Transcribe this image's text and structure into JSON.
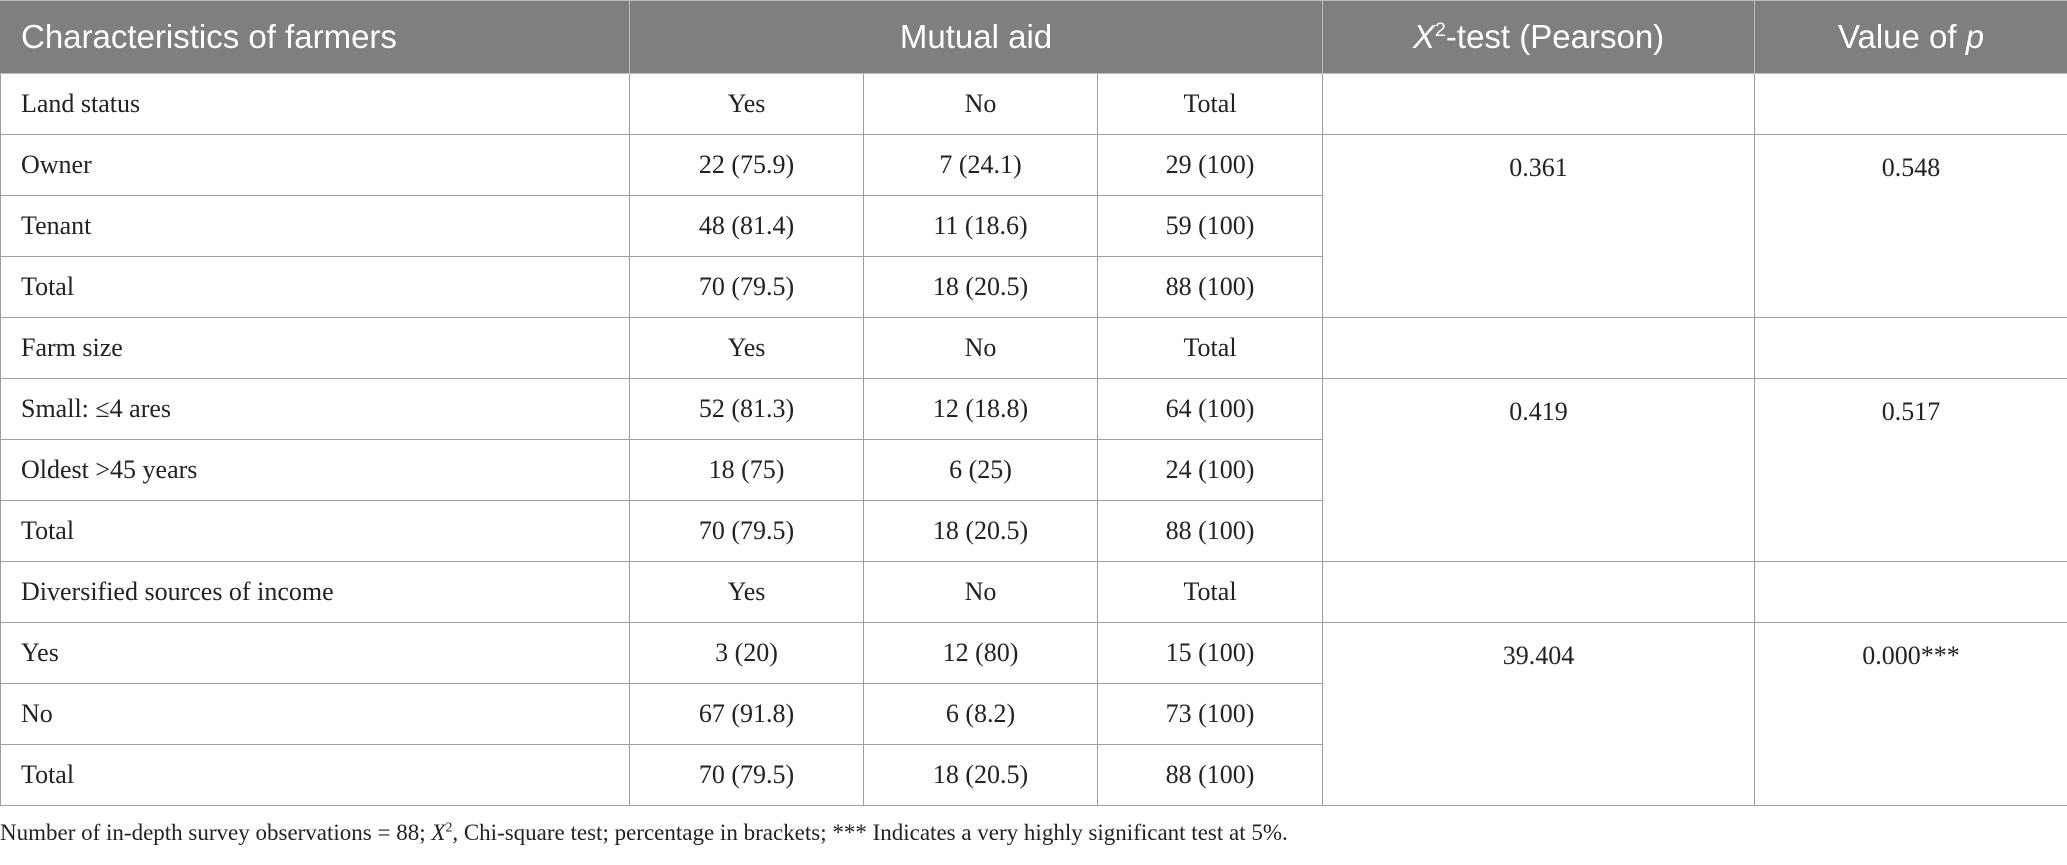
{
  "header": {
    "col1": "Characteristics of farmers",
    "col2": "Mutual aid",
    "col3_var": "X",
    "col3_sup": "2",
    "col3_rest": "-test (Pearson)",
    "col4_text": "Value of ",
    "col4_var": "p"
  },
  "rows": [
    {
      "label": "Land status",
      "yes": "Yes",
      "no": "No",
      "total": "Total"
    },
    {
      "label": "Owner",
      "yes": "22 (75.9)",
      "no": "7 (24.1)",
      "total": "29 (100)"
    },
    {
      "label": "Tenant",
      "yes": "48 (81.4)",
      "no": "11 (18.6)",
      "total": "59 (100)"
    },
    {
      "label": "Total",
      "yes": "70 (79.5)",
      "no": "18 (20.5)",
      "total": "88 (100)"
    },
    {
      "label": "Farm size",
      "yes": "Yes",
      "no": "No",
      "total": "Total"
    },
    {
      "label": "Small: ≤4 ares",
      "yes": "52 (81.3)",
      "no": "12 (18.8)",
      "total": "64 (100)"
    },
    {
      "label": "Oldest ˃45 years",
      "yes": "18 (75)",
      "no": "6 (25)",
      "total": "24 (100)"
    },
    {
      "label": "Total",
      "yes": "70 (79.5)",
      "no": "18 (20.5)",
      "total": "88 (100)"
    },
    {
      "label": "Diversified sources of income",
      "yes": "Yes",
      "no": "No",
      "total": "Total"
    },
    {
      "label": "Yes",
      "yes": "3 (20)",
      "no": "12 (80)",
      "total": "15 (100)"
    },
    {
      "label": "No",
      "yes": "67 (91.8)",
      "no": "6 (8.2)",
      "total": "73 (100)"
    },
    {
      "label": "Total",
      "yes": "70 (79.5)",
      "no": "18 (20.5)",
      "total": "88 (100)"
    }
  ],
  "stats": [
    {
      "chi": "0.361",
      "p": "0.548"
    },
    {
      "chi": "0.419",
      "p": "0.517"
    },
    {
      "chi": "39.404",
      "p": "0.000***"
    }
  ],
  "note": {
    "part1": "Number of in-depth survey observations = 88; ",
    "var": "X",
    "sup": "2",
    "part2": ", Chi-square test; percentage in brackets; *** Indicates a very highly significant test at 5%."
  }
}
